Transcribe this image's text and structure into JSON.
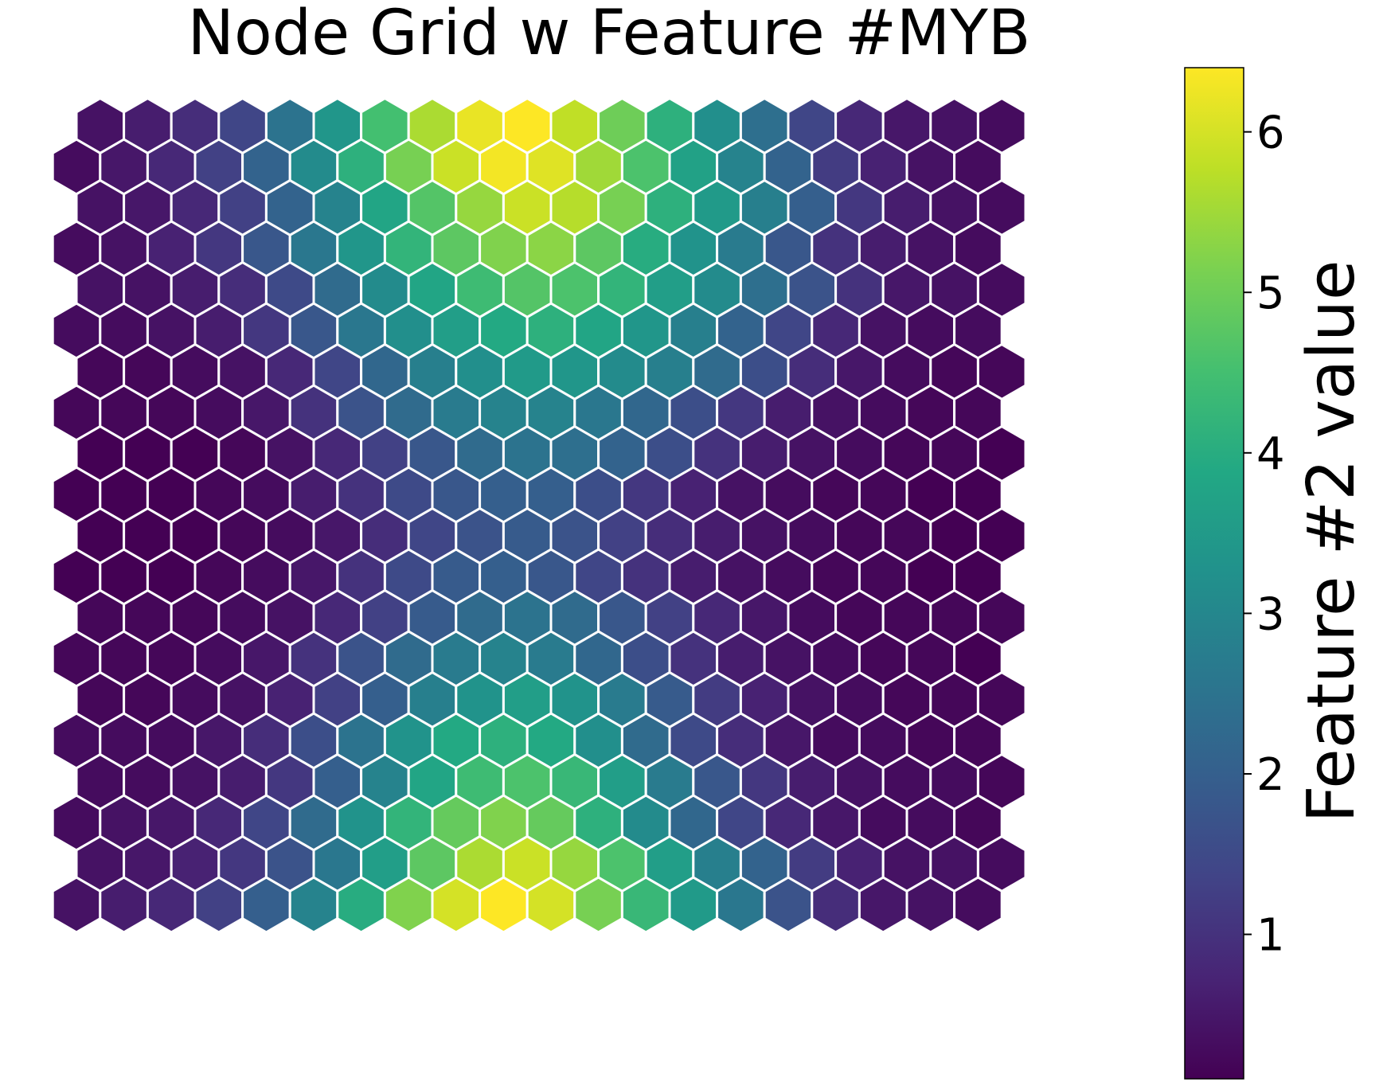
{
  "chart_data": {
    "type": "heatmap",
    "title": "Node Grid w Feature #MYB",
    "colormap": "viridis",
    "colorbar": {
      "label": "Feature #2 value",
      "range": [
        0.1,
        6.4
      ],
      "ticks": [
        1,
        2,
        3,
        4,
        5,
        6
      ],
      "tick_labels": [
        "1",
        "2",
        "3",
        "4",
        "5",
        "6"
      ],
      "position": "right"
    },
    "grid": {
      "rows": 20,
      "cols": 20,
      "layout": "hexagonal",
      "top_row_offset": "right"
    },
    "rows": [
      [
        0.4,
        0.6,
        0.9,
        1.4,
        2.5,
        3.4,
        4.5,
        5.6,
        6.2,
        6.4,
        5.8,
        5.0,
        4.1,
        3.2,
        2.4,
        1.4,
        0.8,
        0.5,
        0.4,
        0.3
      ],
      [
        0.3,
        0.5,
        0.8,
        1.3,
        2.1,
        3.1,
        4.1,
        5.1,
        5.9,
        6.3,
        6.1,
        5.5,
        4.6,
        3.7,
        2.9,
        2.1,
        1.2,
        0.7,
        0.4,
        0.3
      ],
      [
        0.4,
        0.5,
        0.8,
        1.3,
        2.1,
        2.9,
        3.8,
        4.7,
        5.4,
        5.9,
        5.7,
        5.1,
        4.1,
        3.5,
        2.8,
        2.0,
        1.1,
        0.6,
        0.4,
        0.3
      ],
      [
        0.3,
        0.4,
        0.7,
        1.1,
        1.8,
        2.6,
        3.4,
        4.2,
        4.8,
        5.2,
        5.3,
        4.8,
        4.0,
        3.3,
        2.7,
        1.8,
        1.0,
        0.6,
        0.4,
        0.3
      ],
      [
        0.4,
        0.4,
        0.6,
        0.9,
        1.5,
        2.3,
        3.1,
        3.8,
        4.4,
        4.7,
        4.6,
        4.2,
        3.6,
        3.1,
        2.4,
        1.7,
        1.0,
        0.5,
        0.4,
        0.3
      ],
      [
        0.3,
        0.3,
        0.4,
        0.6,
        1.1,
        1.8,
        2.6,
        3.2,
        3.6,
        3.9,
        4.1,
        3.8,
        3.4,
        2.8,
        2.1,
        1.4,
        0.8,
        0.4,
        0.3,
        0.3
      ],
      [
        0.2,
        0.2,
        0.3,
        0.4,
        0.8,
        1.4,
        2.2,
        2.8,
        3.2,
        3.5,
        3.4,
        3.1,
        2.8,
        2.3,
        1.6,
        0.9,
        0.5,
        0.3,
        0.2,
        0.2
      ],
      [
        0.2,
        0.2,
        0.2,
        0.3,
        0.5,
        1.0,
        1.7,
        2.3,
        2.7,
        2.9,
        2.9,
        2.6,
        2.2,
        1.6,
        1.1,
        0.6,
        0.4,
        0.3,
        0.2,
        0.2
      ],
      [
        0.1,
        0.1,
        0.1,
        0.2,
        0.4,
        0.8,
        1.3,
        1.8,
        2.3,
        2.5,
        2.4,
        2.1,
        1.6,
        1.0,
        0.6,
        0.4,
        0.3,
        0.2,
        0.2,
        0.1
      ],
      [
        0.1,
        0.1,
        0.1,
        0.2,
        0.3,
        0.6,
        1.0,
        1.5,
        1.8,
        2.0,
        2.0,
        1.6,
        1.1,
        0.7,
        0.4,
        0.3,
        0.2,
        0.2,
        0.1,
        0.1
      ],
      [
        0.1,
        0.1,
        0.1,
        0.2,
        0.3,
        0.5,
        0.9,
        1.4,
        1.7,
        1.9,
        1.7,
        1.3,
        0.9,
        0.6,
        0.4,
        0.3,
        0.2,
        0.2,
        0.1,
        0.1
      ],
      [
        0.1,
        0.1,
        0.1,
        0.2,
        0.3,
        0.5,
        1.0,
        1.5,
        1.9,
        2.0,
        1.8,
        1.4,
        1.0,
        0.6,
        0.4,
        0.3,
        0.2,
        0.2,
        0.1,
        0.1
      ],
      [
        0.2,
        0.2,
        0.2,
        0.3,
        0.4,
        0.8,
        1.3,
        1.9,
        2.3,
        2.5,
        2.3,
        1.8,
        1.3,
        0.8,
        0.5,
        0.3,
        0.2,
        0.2,
        0.2,
        0.2
      ],
      [
        0.2,
        0.2,
        0.2,
        0.3,
        0.5,
        1.0,
        1.7,
        2.3,
        2.7,
        2.9,
        2.7,
        2.2,
        1.6,
        1.0,
        0.6,
        0.4,
        0.3,
        0.2,
        0.2,
        0.1
      ],
      [
        0.2,
        0.2,
        0.3,
        0.4,
        0.7,
        1.3,
        2.0,
        2.8,
        3.3,
        3.6,
        3.3,
        2.7,
        1.9,
        1.2,
        0.7,
        0.4,
        0.3,
        0.2,
        0.2,
        0.2
      ],
      [
        0.3,
        0.3,
        0.3,
        0.5,
        0.9,
        1.6,
        2.5,
        3.3,
        3.9,
        4.1,
        3.9,
        3.2,
        2.3,
        1.5,
        0.9,
        0.5,
        0.3,
        0.3,
        0.2,
        0.2
      ],
      [
        0.3,
        0.3,
        0.4,
        0.6,
        1.1,
        2.0,
        2.9,
        3.8,
        4.4,
        4.6,
        4.3,
        3.6,
        2.7,
        1.8,
        1.1,
        0.6,
        0.4,
        0.3,
        0.3,
        0.2
      ],
      [
        0.3,
        0.4,
        0.5,
        0.8,
        1.4,
        2.3,
        3.3,
        4.2,
        4.9,
        5.2,
        4.9,
        4.1,
        3.1,
        2.2,
        1.4,
        0.8,
        0.5,
        0.3,
        0.3,
        0.2
      ],
      [
        0.4,
        0.5,
        0.7,
        1.1,
        1.7,
        2.6,
        3.6,
        4.8,
        5.6,
        5.9,
        5.4,
        4.6,
        3.6,
        2.8,
        2.1,
        1.2,
        0.7,
        0.4,
        0.4,
        0.3
      ],
      [
        0.4,
        0.6,
        0.8,
        1.3,
        2.0,
        2.9,
        4.0,
        5.2,
        6.0,
        6.4,
        6.0,
        5.1,
        4.3,
        3.5,
        2.6,
        1.7,
        0.9,
        0.5,
        0.4,
        0.3
      ]
    ]
  }
}
